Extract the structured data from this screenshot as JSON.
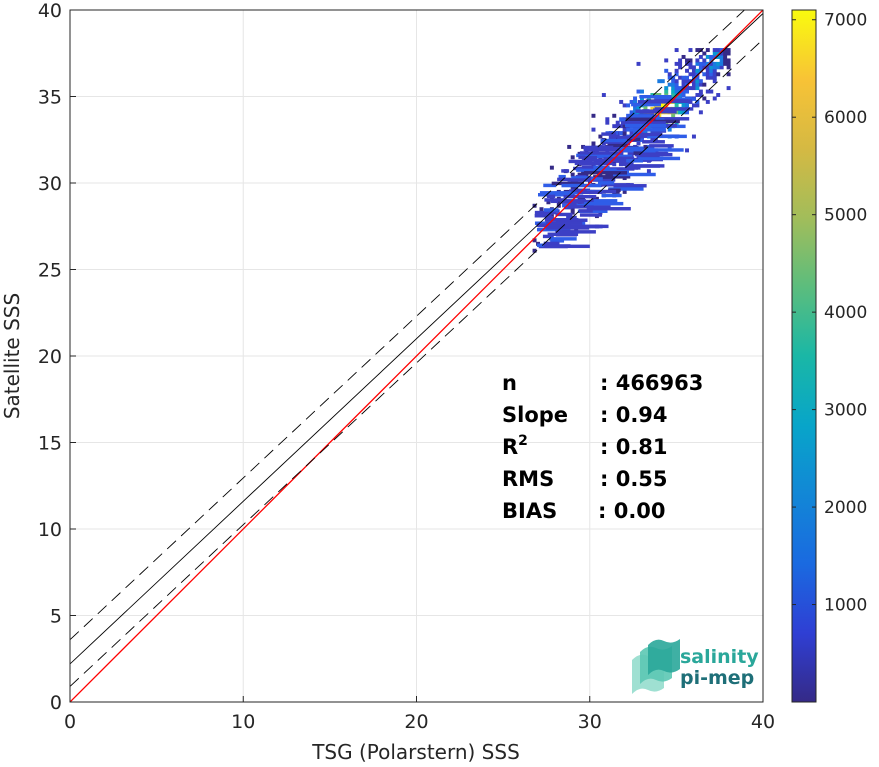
{
  "chart_data": {
    "type": "heatmap",
    "xlabel": "TSG (Polarstern) SSS",
    "ylabel": "Satellite SSS",
    "xlim": [
      0,
      40
    ],
    "ylim": [
      0,
      40
    ],
    "xticks": [
      0,
      10,
      20,
      30,
      40
    ],
    "yticks": [
      0,
      5,
      10,
      15,
      20,
      25,
      30,
      35,
      40
    ],
    "grid": true,
    "colorbar": {
      "range": [
        0,
        7100
      ],
      "ticks": [
        1000,
        2000,
        3000,
        4000,
        5000,
        6000,
        7000
      ],
      "colormap": "parula"
    },
    "lines": [
      {
        "name": "identity",
        "color": "#ff0000",
        "style": "solid",
        "points": [
          [
            0,
            0
          ],
          [
            40,
            40
          ]
        ]
      },
      {
        "name": "regression",
        "color": "#000000",
        "style": "solid",
        "points": [
          [
            0,
            2.2
          ],
          [
            40,
            39.8
          ]
        ]
      },
      {
        "name": "regression-plus-2rms",
        "color": "#000000",
        "style": "dashed",
        "points": [
          [
            0,
            3.6
          ],
          [
            40,
            41.0
          ]
        ]
      },
      {
        "name": "regression-minus-2rms",
        "color": "#000000",
        "style": "dashed",
        "points": [
          [
            0,
            0.9
          ],
          [
            40,
            38.3
          ]
        ]
      }
    ],
    "density_region": {
      "x_range": [
        26.5,
        38
      ],
      "y_range": [
        26,
        37.8
      ],
      "peak": [
        34,
        34.2
      ],
      "peak_count": 7000
    },
    "stats": [
      {
        "label": "n",
        "sup": "",
        "value": ": 466963"
      },
      {
        "label": "Slope",
        "sup": "",
        "value": ": 0.94"
      },
      {
        "label": "R",
        "sup": "2",
        "value": ": 0.81"
      },
      {
        "label": "RMS",
        "sup": "",
        "value": ": 0.55"
      },
      {
        "label": "BIAS",
        "sup": "",
        "value": ": 0.00"
      }
    ]
  },
  "logo": {
    "line1": "salinity",
    "line2": "pi-mep"
  }
}
